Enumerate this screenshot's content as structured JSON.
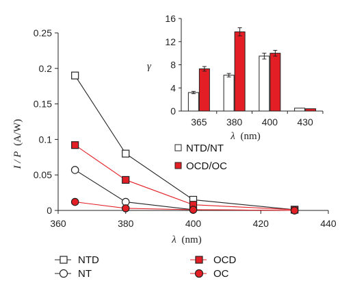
{
  "colors": {
    "red": "#e31e24",
    "black": "#222222",
    "white": "#ffffff"
  },
  "chart_data": [
    {
      "type": "line",
      "title": "",
      "xlabel_symbol": "λ",
      "xlabel_unit": "(nm)",
      "ylabel_symbol": "I / P",
      "ylabel_unit": "(A/W)",
      "xlim": [
        360,
        440
      ],
      "ylim": [
        0,
        0.25
      ],
      "xticks": [
        360,
        380,
        400,
        420,
        440
      ],
      "yticks": [
        0,
        0.05,
        0.1,
        0.15,
        0.2,
        0.25
      ],
      "ytick_labels": [
        "0",
        "0.05",
        "0.1",
        "0.15",
        "0.2",
        "0.25"
      ],
      "x": [
        365,
        380,
        400,
        430
      ],
      "series": [
        {
          "name": "NTD",
          "values": [
            0.19,
            0.08,
            0.015,
            0.001
          ],
          "marker": "square",
          "fill": "#ffffff",
          "color": "#222222"
        },
        {
          "name": "NT",
          "values": [
            0.057,
            0.012,
            0.001,
            0.0
          ],
          "marker": "circle",
          "fill": "#ffffff",
          "color": "#222222"
        },
        {
          "name": "OCD",
          "values": [
            0.092,
            0.043,
            0.008,
            0.001
          ],
          "marker": "square",
          "fill": "#e31e24",
          "color": "#e31e24"
        },
        {
          "name": "OC",
          "values": [
            0.012,
            0.003,
            0.001,
            0.0
          ],
          "marker": "circle",
          "fill": "#e31e24",
          "color": "#e31e24"
        }
      ],
      "legend": {
        "position": "bottom",
        "items": [
          "NTD",
          "NT",
          "OCD",
          "OC"
        ]
      }
    },
    {
      "type": "bar",
      "title": "",
      "xlabel_symbol": "λ",
      "xlabel_unit": "(nm)",
      "ylabel": "γ",
      "ylim": [
        0,
        16
      ],
      "yticks": [
        0,
        4,
        8,
        12,
        16
      ],
      "categories": [
        "365",
        "380",
        "400",
        "430"
      ],
      "series": [
        {
          "name": "NTD/NT",
          "values": [
            3.2,
            6.2,
            9.5,
            0.5
          ],
          "errors": [
            0.2,
            0.3,
            0.5,
            0.05
          ],
          "fill": "#ffffff"
        },
        {
          "name": "OCD/OC",
          "values": [
            7.3,
            13.7,
            10.0,
            0.4
          ],
          "errors": [
            0.4,
            0.7,
            0.5,
            0.05
          ],
          "fill": "#e31e24"
        }
      ],
      "legend": {
        "position": "bottom-right",
        "items": [
          "NTD/NT",
          "OCD/OC"
        ]
      }
    }
  ]
}
